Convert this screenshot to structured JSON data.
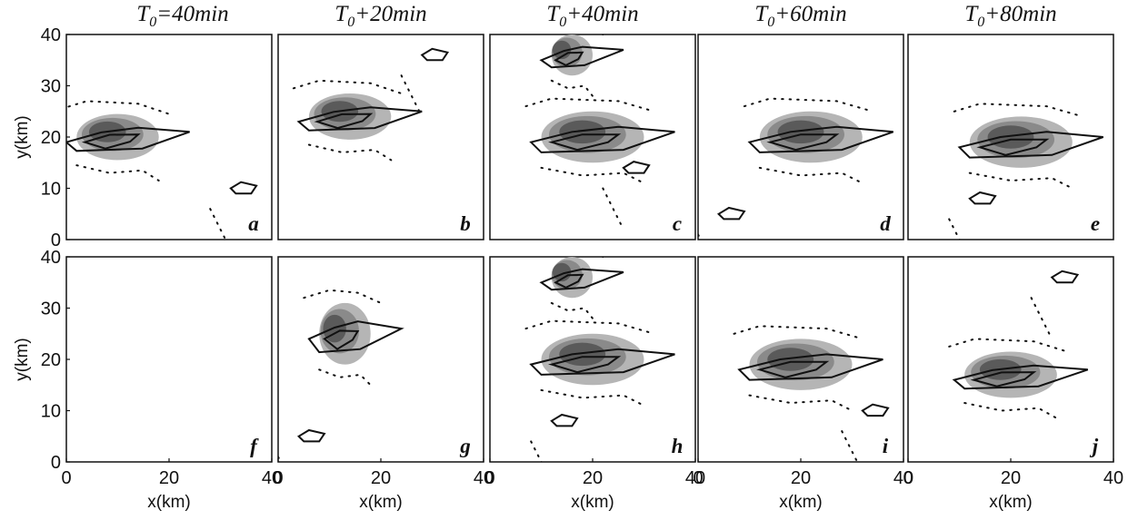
{
  "columns": [
    {
      "pre": "T",
      "sub": "0",
      "post": "=40min"
    },
    {
      "pre": "T",
      "sub": "0",
      "post": "+20min"
    },
    {
      "pre": "T",
      "sub": "0",
      "post": "+40min"
    },
    {
      "pre": "T",
      "sub": "0",
      "post": "+60min"
    },
    {
      "pre": "T",
      "sub": "0",
      "post": "+80min"
    }
  ],
  "panel_labels": [
    [
      "a",
      "b",
      "c",
      "d",
      "e"
    ],
    [
      "f",
      "g",
      "h",
      "i",
      "j"
    ]
  ],
  "axes": {
    "xlabel": "x(km)",
    "ylabel": "y(km)",
    "xlim": [
      0,
      40
    ],
    "ylim": [
      0,
      40
    ],
    "xticks": [
      "0",
      "20",
      "40"
    ],
    "yticks": [
      "0",
      "10",
      "20",
      "30",
      "40"
    ],
    "bottom_row_xticks": [
      [
        "0",
        "20",
        "40"
      ],
      [
        "0",
        "20",
        "40"
      ],
      [
        "0",
        "20",
        "40"
      ],
      [
        "0",
        "20",
        "40"
      ],
      [
        "0",
        "20",
        "40"
      ]
    ]
  },
  "colors": {
    "shade_dark": "#5a5a5a",
    "shade_mid": "#8a8a8a",
    "shade_light": "#b5b5b5",
    "contour": "#111111"
  },
  "empty_panels": [
    "f"
  ]
}
